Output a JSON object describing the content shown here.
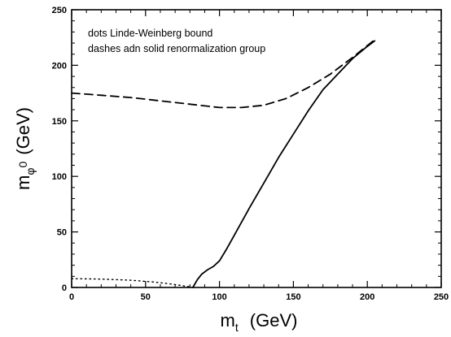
{
  "chart_data": {
    "type": "line",
    "xlabel_main": "m",
    "xlabel_sub": "t",
    "xlabel_unit": "(GeV)",
    "ylabel_main": "m",
    "ylabel_sub": "φ",
    "ylabel_sup": "0",
    "ylabel_unit": "(GeV)",
    "xlim": [
      0,
      250
    ],
    "ylim": [
      0,
      250
    ],
    "xticks": [
      0,
      50,
      100,
      150,
      200,
      250
    ],
    "yticks": [
      0,
      50,
      100,
      150,
      200,
      250
    ],
    "annotations": [
      "dots  Linde-Weinberg bound",
      "dashes adn solid  renormalization group"
    ],
    "series": [
      {
        "style": "dotted",
        "x": [
          0,
          20,
          40,
          55,
          65,
          72,
          78,
          82
        ],
        "y": [
          8,
          7.5,
          6.5,
          5,
          3.5,
          2.2,
          1,
          0
        ]
      },
      {
        "style": "dashed",
        "x": [
          0,
          20,
          40,
          60,
          80,
          100,
          115,
          130,
          145,
          160,
          175,
          190,
          205
        ],
        "y": [
          175,
          173,
          171,
          168,
          165,
          162,
          162,
          164,
          170,
          180,
          192,
          207,
          223
        ]
      },
      {
        "style": "solid",
        "x": [
          82,
          85,
          88,
          92,
          96,
          100,
          105,
          110,
          120,
          130,
          140,
          150,
          160,
          170,
          180,
          190,
          200,
          205
        ],
        "y": [
          0,
          7,
          12,
          16,
          19,
          24,
          35,
          47,
          71,
          94,
          117,
          138,
          159,
          178,
          192,
          206,
          217,
          222
        ]
      }
    ]
  }
}
